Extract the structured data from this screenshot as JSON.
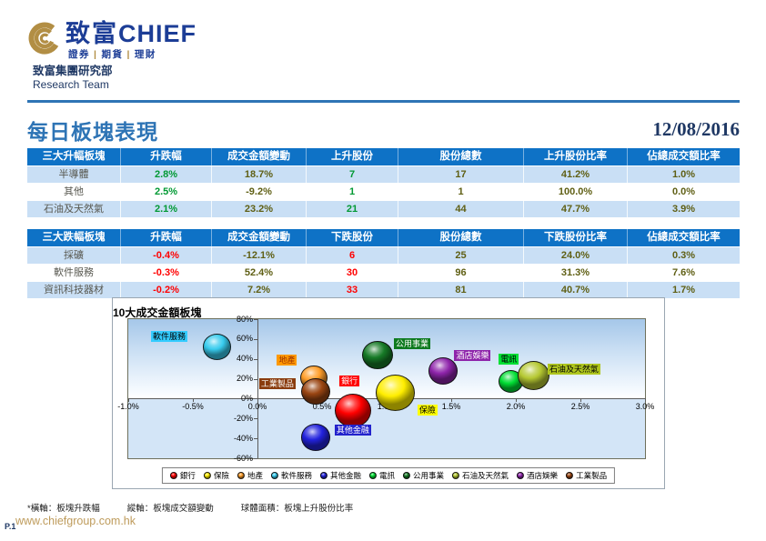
{
  "colors": {
    "gold": "#B28E44",
    "logo_blue": "#1C3D96",
    "dept_blue": "#1F3864",
    "rule_blue": "#2E74B5",
    "title_blue": "#2E74B5",
    "date_navy": "#1F3864",
    "table_header_bg": "#0E72C6",
    "table_alt_row_bg": "#C9DFF5",
    "up_green": "#009933",
    "down_red": "#FF0000",
    "value_olive": "#5F5F14",
    "sector_gray": "#585850",
    "url_gold": "#BE9B5B"
  },
  "header": {
    "logo": {
      "brand_cn": "致富",
      "brand_en": "CHIEF",
      "tagline": [
        "證券",
        "期貨",
        "理財"
      ],
      "sep": "|"
    },
    "dept_cn": "致富集團研究部",
    "dept_en": "Research Team"
  },
  "title": {
    "text": "每日板塊表現",
    "date": "12/08/2016"
  },
  "tables": {
    "up": {
      "columns": [
        "三大升幅板塊",
        "升跌幅",
        "成交金額變動",
        "上升股份",
        "股份總數",
        "上升股份比率",
        "佔總成交額比率"
      ],
      "rows": [
        [
          "半導體",
          "2.8%",
          "18.7%",
          "7",
          "17",
          "41.2%",
          "1.0%"
        ],
        [
          "其他",
          "2.5%",
          "-9.2%",
          "1",
          "1",
          "100.0%",
          "0.0%"
        ],
        [
          "石油及天然氣",
          "2.1%",
          "23.2%",
          "21",
          "44",
          "47.7%",
          "3.9%"
        ]
      ]
    },
    "down": {
      "columns": [
        "三大跌幅板塊",
        "升跌幅",
        "成交金額變動",
        "下跌股份",
        "股份總數",
        "下跌股份比率",
        "佔總成交額比率"
      ],
      "rows": [
        [
          "採礦",
          "-0.4%",
          "-12.1%",
          "6",
          "25",
          "24.0%",
          "0.3%"
        ],
        [
          "軟件服務",
          "-0.3%",
          "52.4%",
          "30",
          "96",
          "31.3%",
          "7.6%"
        ],
        [
          "資訊科技器材",
          "-0.2%",
          "7.2%",
          "33",
          "81",
          "40.7%",
          "1.7%"
        ]
      ]
    }
  },
  "chart_data": {
    "type": "bubble",
    "title": "10大成交金額板塊",
    "xlabel": "板塊升跌幅",
    "ylabel": "板塊成交額變動",
    "size_label": "板塊上升股份比率",
    "xlim": [
      -1.0,
      3.0
    ],
    "x_tick_step": 0.5,
    "ylim": [
      -60,
      80
    ],
    "y_tick_step": 20,
    "grid": false,
    "legend_position": "bottom",
    "series": [
      {
        "id": "banks",
        "name": "銀行",
        "x": 0.74,
        "y": -12,
        "r": 20,
        "color": "#FF0000",
        "label_bg": "#FF0000",
        "label_fg": "#FFFFFF",
        "label_dx": -4,
        "label_dy": -33
      },
      {
        "id": "insurance",
        "name": "保險",
        "x": 1.07,
        "y": 6,
        "r": 21.5,
        "color": "#FFEE00",
        "label_bg": "#FFFF00",
        "label_fg": "#000000",
        "label_dx": 35,
        "label_dy": 19
      },
      {
        "id": "real-estate",
        "name": "地產",
        "x": 0.44,
        "y": 21,
        "r": 15,
        "color": "#FF9E2A",
        "label_bg": "#FF9900",
        "label_fg": "#9C3000",
        "label_dx": -30,
        "label_dy": -19
      },
      {
        "id": "software",
        "name": "軟件服務",
        "x": -0.31,
        "y": 52,
        "r": 15.5,
        "color": "#38CCEE",
        "label_bg": "#33CCFF",
        "label_fg": "#000000",
        "label_dx": -53,
        "label_dy": -12
      },
      {
        "id": "other-financials",
        "name": "其他金融",
        "x": 0.45,
        "y": -39,
        "r": 16,
        "color": "#2222DD",
        "label_bg": "#2222CC",
        "label_fg": "#FFFFFF",
        "label_dx": 41,
        "label_dy": -8
      },
      {
        "id": "telecom",
        "name": "電訊",
        "x": 1.96,
        "y": 17,
        "r": 13.5,
        "color": "#00DD33",
        "label_bg": "#00E033",
        "label_fg": "#000000",
        "label_dx": -2,
        "label_dy": -25
      },
      {
        "id": "utilities",
        "name": "公用事業",
        "x": 0.93,
        "y": 44,
        "r": 17,
        "color": "#167A26",
        "label_bg": "#0E7A1F",
        "label_fg": "#FFFFFF",
        "label_dx": 38,
        "label_dy": -12
      },
      {
        "id": "oil-gas",
        "name": "石油及天然氣",
        "x": 2.14,
        "y": 23,
        "r": 17.5,
        "color": "#B5C832",
        "label_bg": "#AFC61E",
        "label_fg": "#000000",
        "label_dx": 44,
        "label_dy": -7
      },
      {
        "id": "hotels-ent",
        "name": "酒店娛樂",
        "x": 1.44,
        "y": 28,
        "r": 16,
        "color": "#8E24AA",
        "label_bg": "#8E24AA",
        "label_fg": "#FFFFFF",
        "label_dx": 32,
        "label_dy": -17
      },
      {
        "id": "industrial-goods",
        "name": "工業製品",
        "x": 0.45,
        "y": 7,
        "r": 16,
        "color": "#9A4512",
        "label_bg": "#8A3C0E",
        "label_fg": "#FFFFFF",
        "label_dx": -42,
        "label_dy": -9
      }
    ],
    "legend_order": [
      "銀行",
      "保險",
      "地產",
      "軟件服務",
      "其他金融",
      "電訊",
      "公用事業",
      "石油及天然氣",
      "酒店娛樂",
      "工業製品"
    ]
  },
  "footnote": {
    "axis_x": "*橫軸：板塊升跌幅",
    "axis_y": "縱軸：板塊成交額變動",
    "bubble": "球體面積：板塊上升股份比率"
  },
  "footer": {
    "page_label": "P.1",
    "url": "www.chiefgroup.com.hk"
  }
}
